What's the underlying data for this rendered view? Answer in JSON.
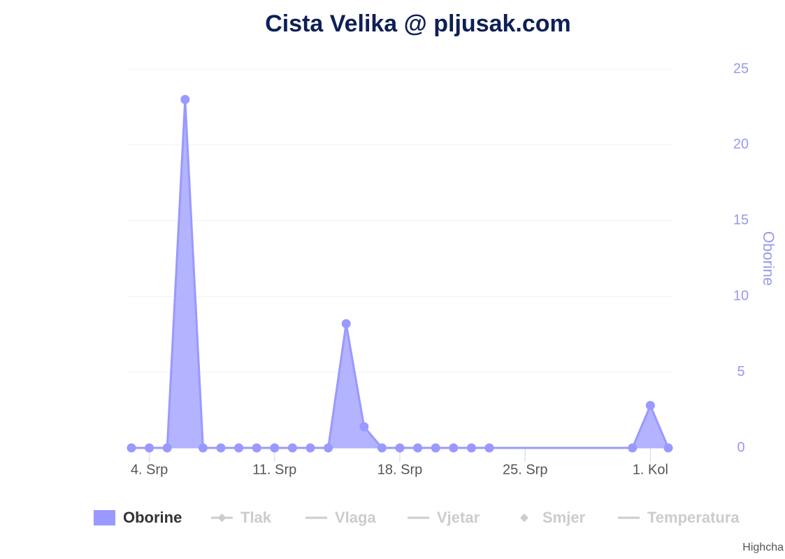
{
  "chart_data": {
    "type": "area",
    "title": "Cista Velika @ pljusak.com",
    "x": [
      "07-03",
      "07-04",
      "07-05",
      "07-06",
      "07-07",
      "07-08",
      "07-09",
      "07-10",
      "07-11",
      "07-12",
      "07-13",
      "07-14",
      "07-15",
      "07-16",
      "07-17",
      "07-18",
      "07-19",
      "07-20",
      "07-21",
      "07-22",
      "07-23",
      "07-31",
      "08-01",
      "08-02"
    ],
    "series": [
      {
        "name": "Oborine",
        "color": "#9999ff",
        "symbol": "area",
        "visible": true,
        "axis": "y2",
        "values": [
          0,
          0,
          0,
          23,
          0,
          0,
          0,
          0,
          0,
          0,
          0,
          0,
          8.2,
          1.4,
          0,
          0,
          0,
          0,
          0,
          0,
          0,
          0,
          2.8,
          0
        ]
      },
      {
        "name": "Tlak",
        "symbol": "line-diamond",
        "visible": false
      },
      {
        "name": "Vlaga",
        "symbol": "line",
        "visible": false
      },
      {
        "name": "Vjetar",
        "symbol": "line",
        "visible": false
      },
      {
        "name": "Smjer",
        "symbol": "diamond",
        "visible": false
      },
      {
        "name": "Temperatura",
        "symbol": "line",
        "visible": false
      }
    ],
    "xlim": [
      "07-03",
      "08-02"
    ],
    "xticks": [
      {
        "value": "07-04",
        "label": "4. Srp"
      },
      {
        "value": "07-11",
        "label": "11. Srp"
      },
      {
        "value": "07-18",
        "label": "18. Srp"
      },
      {
        "value": "07-25",
        "label": "25. Srp"
      },
      {
        "value": "08-01",
        "label": "1. Kol"
      }
    ],
    "y2_label": "Oborine",
    "y2lim": [
      0,
      25
    ],
    "y2ticks": [
      0,
      5,
      10,
      15,
      20,
      25
    ],
    "grid": true,
    "credits": "Highcha"
  }
}
